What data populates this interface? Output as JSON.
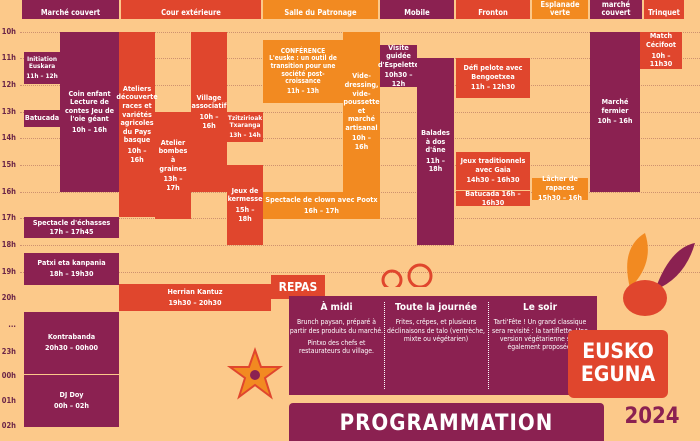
{
  "headers": [
    "Marché couvert",
    "Cour extérieure",
    "Salle du Patronage",
    "Mobile",
    "Fronton",
    "Esplanade verte",
    "Auvent marché couvert",
    "Trinquet"
  ],
  "hours": [
    "10h",
    "11h",
    "12h",
    "13h",
    "14h",
    "15h",
    "16h",
    "17h",
    "18h",
    "19h",
    "20h",
    "...",
    "23h",
    "00h",
    "01h",
    "02h"
  ],
  "events": {
    "initiation": {
      "title": "Initiation Euskara",
      "time": "11h – 12h"
    },
    "coin_enfant": {
      "title": "Coin enfant Lecture de contes Jeu de l'oie géant",
      "time": "10h – 16h"
    },
    "batucada1": {
      "title": "Batucada"
    },
    "ateliers": {
      "title": "Ateliers découverte races et variétés agricoles du Pays basque",
      "time": "10h – 16h"
    },
    "atelier_bombes": {
      "title": "Atelier bombes à graines",
      "time": "13h – 17h"
    },
    "village": {
      "title": "Village associatif",
      "time": "10h – 16h"
    },
    "tsirrika": {
      "title": "Tzitzirioak Txaranga",
      "time": "13h – 14h"
    },
    "jeux_kermesse": {
      "title": "Jeux de kermesse",
      "time": "15h – 18h"
    },
    "conference": {
      "label": "CONFÉRENCE",
      "title": "L'euske : un outil de transition pour une société post-croissance",
      "time": "11h – 13h"
    },
    "vide": {
      "title": "Vide-dressing, vide-poussette et marché artisanal",
      "time": "10h – 16h"
    },
    "clown": {
      "title": "Spectacle de clown avec Pootx",
      "time": "16h – 17h"
    },
    "visite": {
      "title": "Visite guidée d'Espelette",
      "time": "10h30 – 12h"
    },
    "balades": {
      "title": "Balades à dos d'âne",
      "time": "11h – 18h"
    },
    "defi": {
      "title": "Défi pelote avec Bengoetxea",
      "time": "11h – 12h30"
    },
    "jeux_trad": {
      "title": "Jeux traditionnels avec Gaia",
      "time": "14h30 – 16h30"
    },
    "batucada2": {
      "title": "Batucada 16h – 16h30"
    },
    "lacher": {
      "title": "Lâcher de rapaces",
      "time": "15h30 – 16h"
    },
    "marche_fermier": {
      "title": "Marché fermier",
      "time": "10h – 16h"
    },
    "match": {
      "title": "Match Cécifoot",
      "time": "10h – 11h30"
    },
    "spectacle": {
      "title": "Spectacle d'échasses",
      "time": "17h – 17h45"
    },
    "patxi": {
      "title": "Patxi eta kanpania",
      "time": "18h – 19h30"
    },
    "herrian": {
      "title": "Herrian Kantuz",
      "time": "19h30 – 20h30"
    },
    "kontrabanda": {
      "title": "Kontrabanda",
      "time": "20h30 – 00h00"
    },
    "dj": {
      "title": "DJ Doy",
      "time": "00h – 02h"
    }
  },
  "repas": {
    "tag": "REPAS",
    "midi": {
      "title": "À midi",
      "text1": "Brunch paysan, préparé à partir des produits du marché.",
      "text2": "Pintxo des chefs et restaurateurs du village."
    },
    "journee": {
      "title": "Toute la journée",
      "text": "Frites, crêpes, et plusieurs déclinaisons de talo (ventrèche, mixte ou végétarien)"
    },
    "soir": {
      "title": "Le soir",
      "text": "Tarti'Fête ! Un grand classique sera revisité : la tartiflette. Une version végétarienne sera également proposée."
    }
  },
  "branding": {
    "line1": "EUSKO",
    "line2": "EGUNA",
    "year": "2024",
    "program": "PROGRAMMATION"
  }
}
